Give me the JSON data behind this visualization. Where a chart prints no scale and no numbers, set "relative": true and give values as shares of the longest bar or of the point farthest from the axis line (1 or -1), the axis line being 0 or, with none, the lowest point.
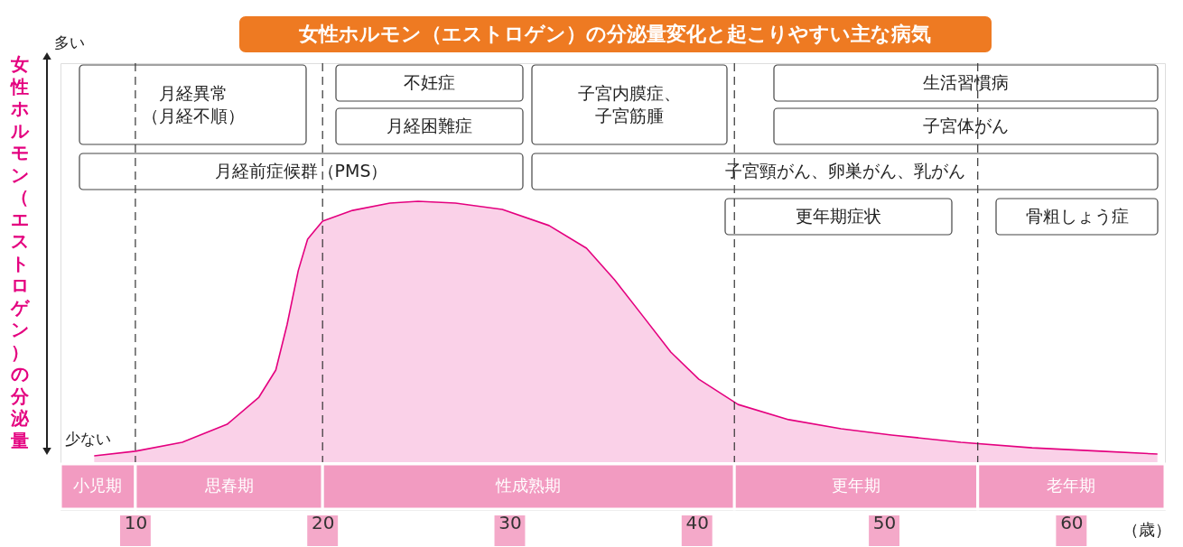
{
  "chart_data": {
    "type": "area",
    "title": "女性ホルモン（エストロゲン）の分泌量変化と起こりやすい主な病気",
    "xlabel": "（歳）",
    "ylabel": "女性ホルモン（エストロゲン）の分泌量",
    "annotations": [
      "多い",
      "少ない",
      "小児期",
      "思春期",
      "性成熟期",
      "更年期",
      "老年期",
      "月経異常",
      "（月経不順）",
      "不妊症",
      "月経困難症",
      "子宮内膜症、",
      "子宮筋腫",
      "生活習慣病",
      "子宮体がん",
      "月経前症候群（PMS）",
      "子宮頸がん、卵巣がん、乳がん",
      "更年期症状",
      "骨粗しょう症"
    ],
    "relative": true,
    "grid": false,
    "xlim": [
      6,
      65
    ],
    "xticks": [
      10,
      20,
      30,
      40,
      50,
      60
    ],
    "x": [
      7.8,
      10,
      12.5,
      14.9,
      16.6,
      17.5,
      18.1,
      18.7,
      19.2,
      20,
      21.6,
      23.6,
      25.1,
      27.1,
      29.6,
      32.1,
      34.1,
      35.6,
      37.1,
      38.6,
      40.1,
      42.2,
      44.9,
      47.7,
      50.4,
      54.1,
      57.9,
      61.6,
      64.6
    ],
    "series": [
      {
        "color": "#e4007f",
        "values": [
          0.024,
          0.042,
          0.076,
          0.145,
          0.249,
          0.353,
          0.526,
          0.734,
          0.855,
          0.924,
          0.965,
          0.993,
          1,
          0.993,
          0.969,
          0.907,
          0.82,
          0.699,
          0.561,
          0.422,
          0.318,
          0.221,
          0.163,
          0.128,
          0.104,
          0.076,
          0.055,
          0.042,
          0.031
        ]
      }
    ],
    "ref_lines": [
      {
        "axis": "x",
        "value": 10,
        "line_style": "dashed"
      },
      {
        "axis": "x",
        "value": 20,
        "line_style": "dashed"
      },
      {
        "axis": "x",
        "value": 42,
        "line_style": "dashed"
      },
      {
        "axis": "x",
        "value": 55,
        "line_style": "dashed"
      }
    ]
  }
}
